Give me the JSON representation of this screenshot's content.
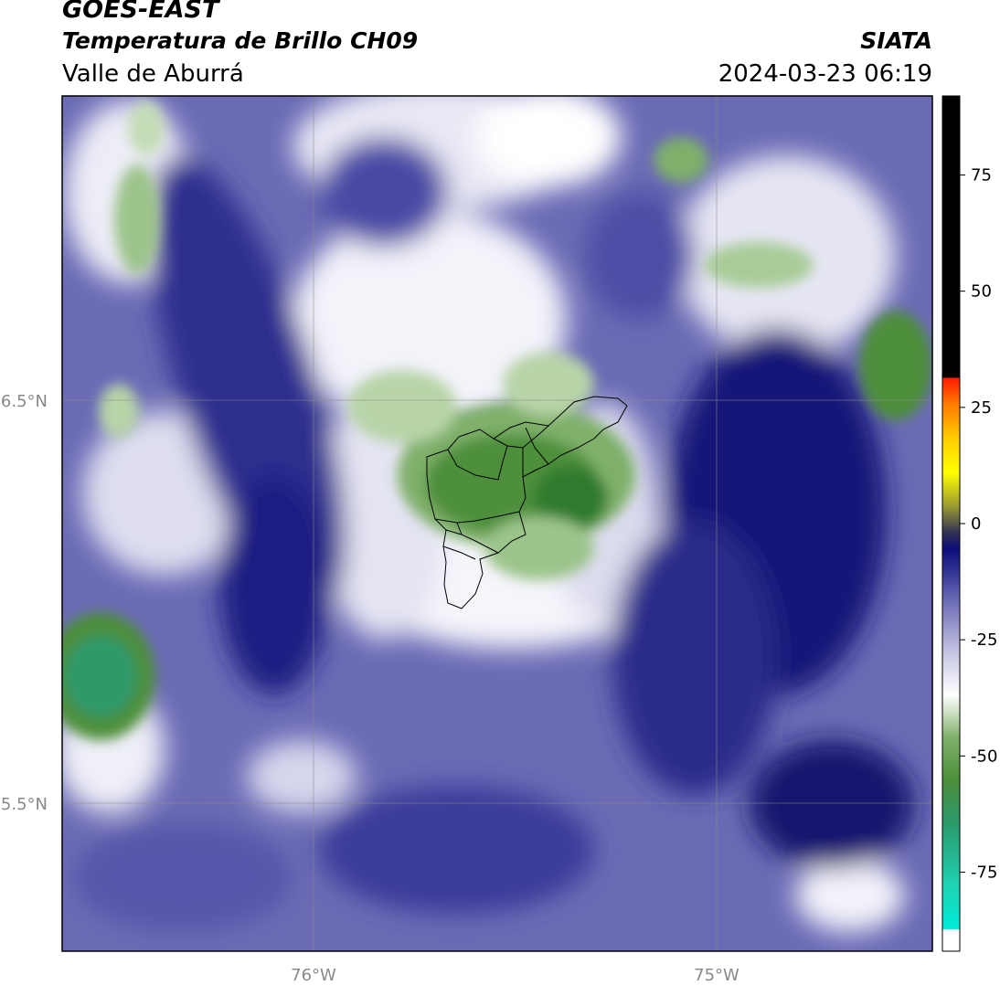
{
  "header": {
    "satellite": "GOES-EAST",
    "product": "Temperatura de Brillo CH09",
    "region": "Valle de Aburrá",
    "agency": "SIATA",
    "timestamp": "2024-03-23 06:19"
  },
  "map": {
    "lat_labels": [
      "6.5°N",
      "5.5°N"
    ],
    "lon_labels": [
      "76°W",
      "75°W"
    ],
    "gridlines": true
  },
  "colorbar": {
    "ticks": [
      "75",
      "50",
      "25",
      "0",
      "-25",
      "-50",
      "-75"
    ],
    "range": [
      -92,
      92
    ],
    "colors": {
      "black_band": "#000000",
      "warm": [
        "#ff1a00",
        "#ff7a00",
        "#ffcc00",
        "#ffff00",
        "#999933"
      ],
      "blue": [
        "#1a1a4d",
        "#0c0c7a",
        "#2a2a8c",
        "#4b4ba3",
        "#7a7abd",
        "#a8a8d6",
        "#d9d9ec"
      ],
      "green": [
        "#e4eedc",
        "#b8d4a8",
        "#7fb06a",
        "#4d8f3a",
        "#2f7a2f"
      ],
      "cyan": [
        "#2aa080",
        "#1fd0b0",
        "#00ecd8"
      ]
    }
  }
}
